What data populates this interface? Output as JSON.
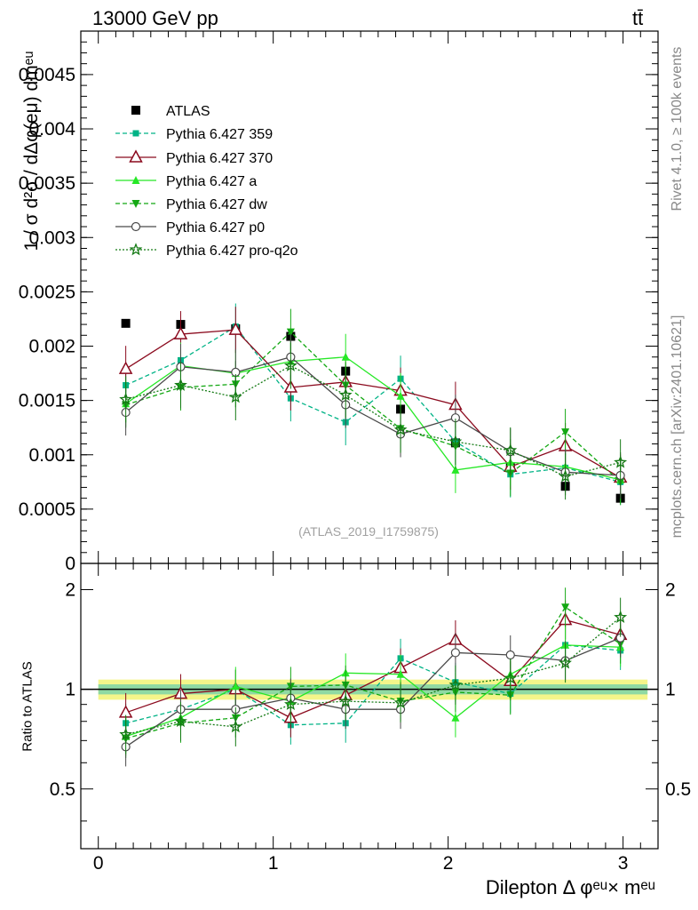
{
  "header": {
    "energy": "13000 GeV pp",
    "process": "tt̄"
  },
  "side": {
    "rivet": "Rivet 4.1.0, ≥ 100k events",
    "source": "mcplots.cern.ch [arXiv:2401.10621]"
  },
  "watermark": "(ATLAS_2019_I1759875)",
  "colors": {
    "atlas": "#000000",
    "p359": "#00b386",
    "p370": "#8b0a1e",
    "pa": "#26e826",
    "pdw": "#13a813",
    "pp0": "#4a4a4a",
    "pq2o": "#147a14"
  },
  "chart_data": [
    {
      "type": "line",
      "panel": "main",
      "ylabel": "1 / σ  d²σ / dΔφ(eμ) dmᵉᵘ",
      "xlim": [
        -0.1,
        3.2
      ],
      "ylim": [
        0,
        0.0049
      ],
      "yticks": [
        0,
        0.0005,
        0.001,
        0.0015,
        0.002,
        0.0025,
        0.003,
        0.0035,
        0.004,
        0.0045
      ],
      "ytick_labels": [
        "0",
        "0.0005",
        "0.001",
        "0.0015",
        "0.002",
        "0.0025",
        "0.003",
        "0.0035",
        "0.004",
        "0.0045"
      ],
      "x": [
        0.157,
        0.471,
        0.785,
        1.1,
        1.414,
        1.728,
        2.042,
        2.356,
        2.67,
        2.985
      ],
      "series": [
        {
          "key": "atlas",
          "name": "ATLAS",
          "values": [
            0.00221,
            0.0022,
            0.00216,
            0.00209,
            0.00177,
            0.00142,
            0.00111,
            0.00088,
            0.00071,
            0.0006
          ]
        },
        {
          "key": "p359",
          "name": "Pythia 6.427 359",
          "values": [
            0.00164,
            0.00187,
            0.00218,
            0.00152,
            0.0013,
            0.0017,
            0.00112,
            0.00082,
            0.00088,
            0.00075
          ]
        },
        {
          "key": "p370",
          "name": "Pythia 6.427 370",
          "values": [
            0.00179,
            0.00211,
            0.00215,
            0.00162,
            0.00167,
            0.00159,
            0.00146,
            0.00089,
            0.00108,
            0.00079
          ]
        },
        {
          "key": "pa",
          "name": "Pythia 6.427 a",
          "values": [
            0.00147,
            0.00182,
            0.00175,
            0.00186,
            0.0019,
            0.00154,
            0.00086,
            0.00093,
            0.00089,
            0.00077
          ]
        },
        {
          "key": "pdw",
          "name": "Pythia 6.427 dw",
          "values": [
            0.00146,
            0.00162,
            0.00165,
            0.00213,
            0.00164,
            0.00124,
            0.00108,
            0.00083,
            0.00121,
            0.00075
          ]
        },
        {
          "key": "pp0",
          "name": "Pythia 6.427 p0",
          "values": [
            0.00139,
            0.00181,
            0.00176,
            0.0019,
            0.00146,
            0.00119,
            0.00134,
            0.00103,
            0.00084,
            0.00081
          ]
        },
        {
          "key": "pq2o",
          "name": "Pythia 6.427 pro-q2o",
          "values": [
            0.00151,
            0.00164,
            0.00153,
            0.00182,
            0.00155,
            0.00123,
            0.00112,
            0.00104,
            0.0008,
            0.00093
          ]
        }
      ]
    },
    {
      "type": "line",
      "panel": "ratio",
      "ylabel": "Ratio to ATLAS",
      "xlabel": "Dilepton Δ φᵉᵘ× mᵉᵘ",
      "xlim": [
        -0.1,
        3.2
      ],
      "xticks": [
        0,
        1,
        2,
        3
      ],
      "xtick_labels": [
        "0",
        "1",
        "2",
        "3"
      ],
      "ylim": [
        0.33,
        2.4
      ],
      "yticks": [
        0.5,
        1,
        2
      ],
      "ytick_labels": [
        "0.5",
        "1",
        "2"
      ],
      "x": [
        0.157,
        0.471,
        0.785,
        1.1,
        1.414,
        1.728,
        2.042,
        2.356,
        2.67,
        2.985
      ],
      "series": [
        {
          "key": "p359",
          "name": "Pythia 6.427 359",
          "values": [
            0.79,
            0.87,
            1.0,
            0.78,
            0.79,
            1.24,
            1.05,
            0.97,
            1.36,
            1.31
          ]
        },
        {
          "key": "p370",
          "name": "Pythia 6.427 370",
          "values": [
            0.85,
            0.97,
            1.0,
            0.82,
            0.96,
            1.16,
            1.41,
            1.06,
            1.62,
            1.46
          ]
        },
        {
          "key": "pa",
          "name": "Pythia 6.427 a",
          "values": [
            0.72,
            0.82,
            1.02,
            0.92,
            1.12,
            1.11,
            0.82,
            1.11,
            1.36,
            1.34
          ]
        },
        {
          "key": "pdw",
          "name": "Pythia 6.427 dw",
          "values": [
            0.71,
            0.79,
            0.82,
            1.02,
            1.03,
            0.92,
            0.98,
            0.96,
            1.77,
            1.37
          ]
        },
        {
          "key": "pp0",
          "name": "Pythia 6.427 p0",
          "values": [
            0.67,
            0.87,
            0.87,
            0.94,
            0.87,
            0.87,
            1.29,
            1.27,
            1.22,
            1.43
          ]
        },
        {
          "key": "pq2o",
          "name": "Pythia 6.427 pro-q2o",
          "values": [
            0.73,
            0.8,
            0.77,
            0.9,
            0.92,
            0.91,
            1.03,
            1.08,
            1.2,
            1.65
          ]
        }
      ]
    }
  ]
}
